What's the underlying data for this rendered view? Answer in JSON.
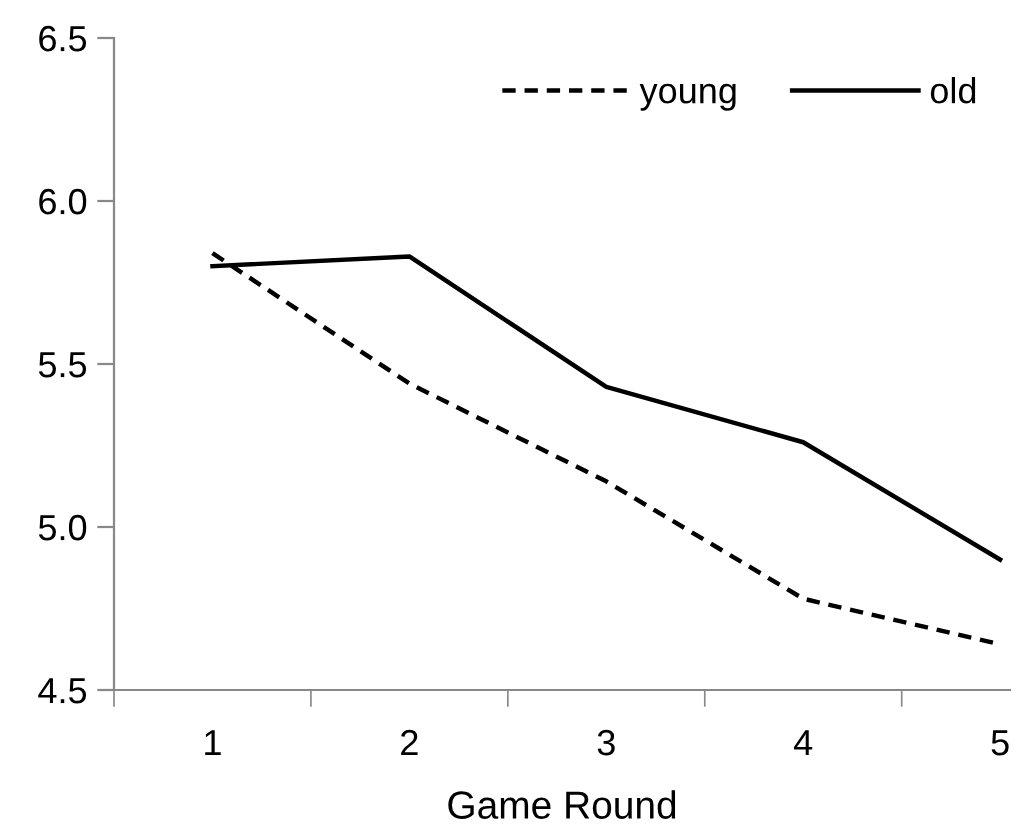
{
  "chart_data": {
    "type": "line",
    "xlabel": "Game Round",
    "categories": [
      "1",
      "2",
      "3",
      "4",
      "5"
    ],
    "series": [
      {
        "name": "young",
        "color": "#000000",
        "line_style": "dashed",
        "values": [
          5.84,
          5.44,
          5.14,
          4.78,
          4.64
        ]
      },
      {
        "name": "old",
        "color": "#000000",
        "line_style": "solid",
        "values": [
          5.8,
          5.83,
          5.43,
          5.26,
          4.9
        ]
      }
    ],
    "ylim": [
      4.5,
      6.5
    ],
    "yticks": [
      4.5,
      {
        "value": 5.0,
        "label": "5.0"
      },
      5.5,
      {
        "value": 6.0,
        "label": "6.0"
      },
      6.5
    ],
    "grid": false,
    "legend": "top right",
    "marker": "none"
  }
}
